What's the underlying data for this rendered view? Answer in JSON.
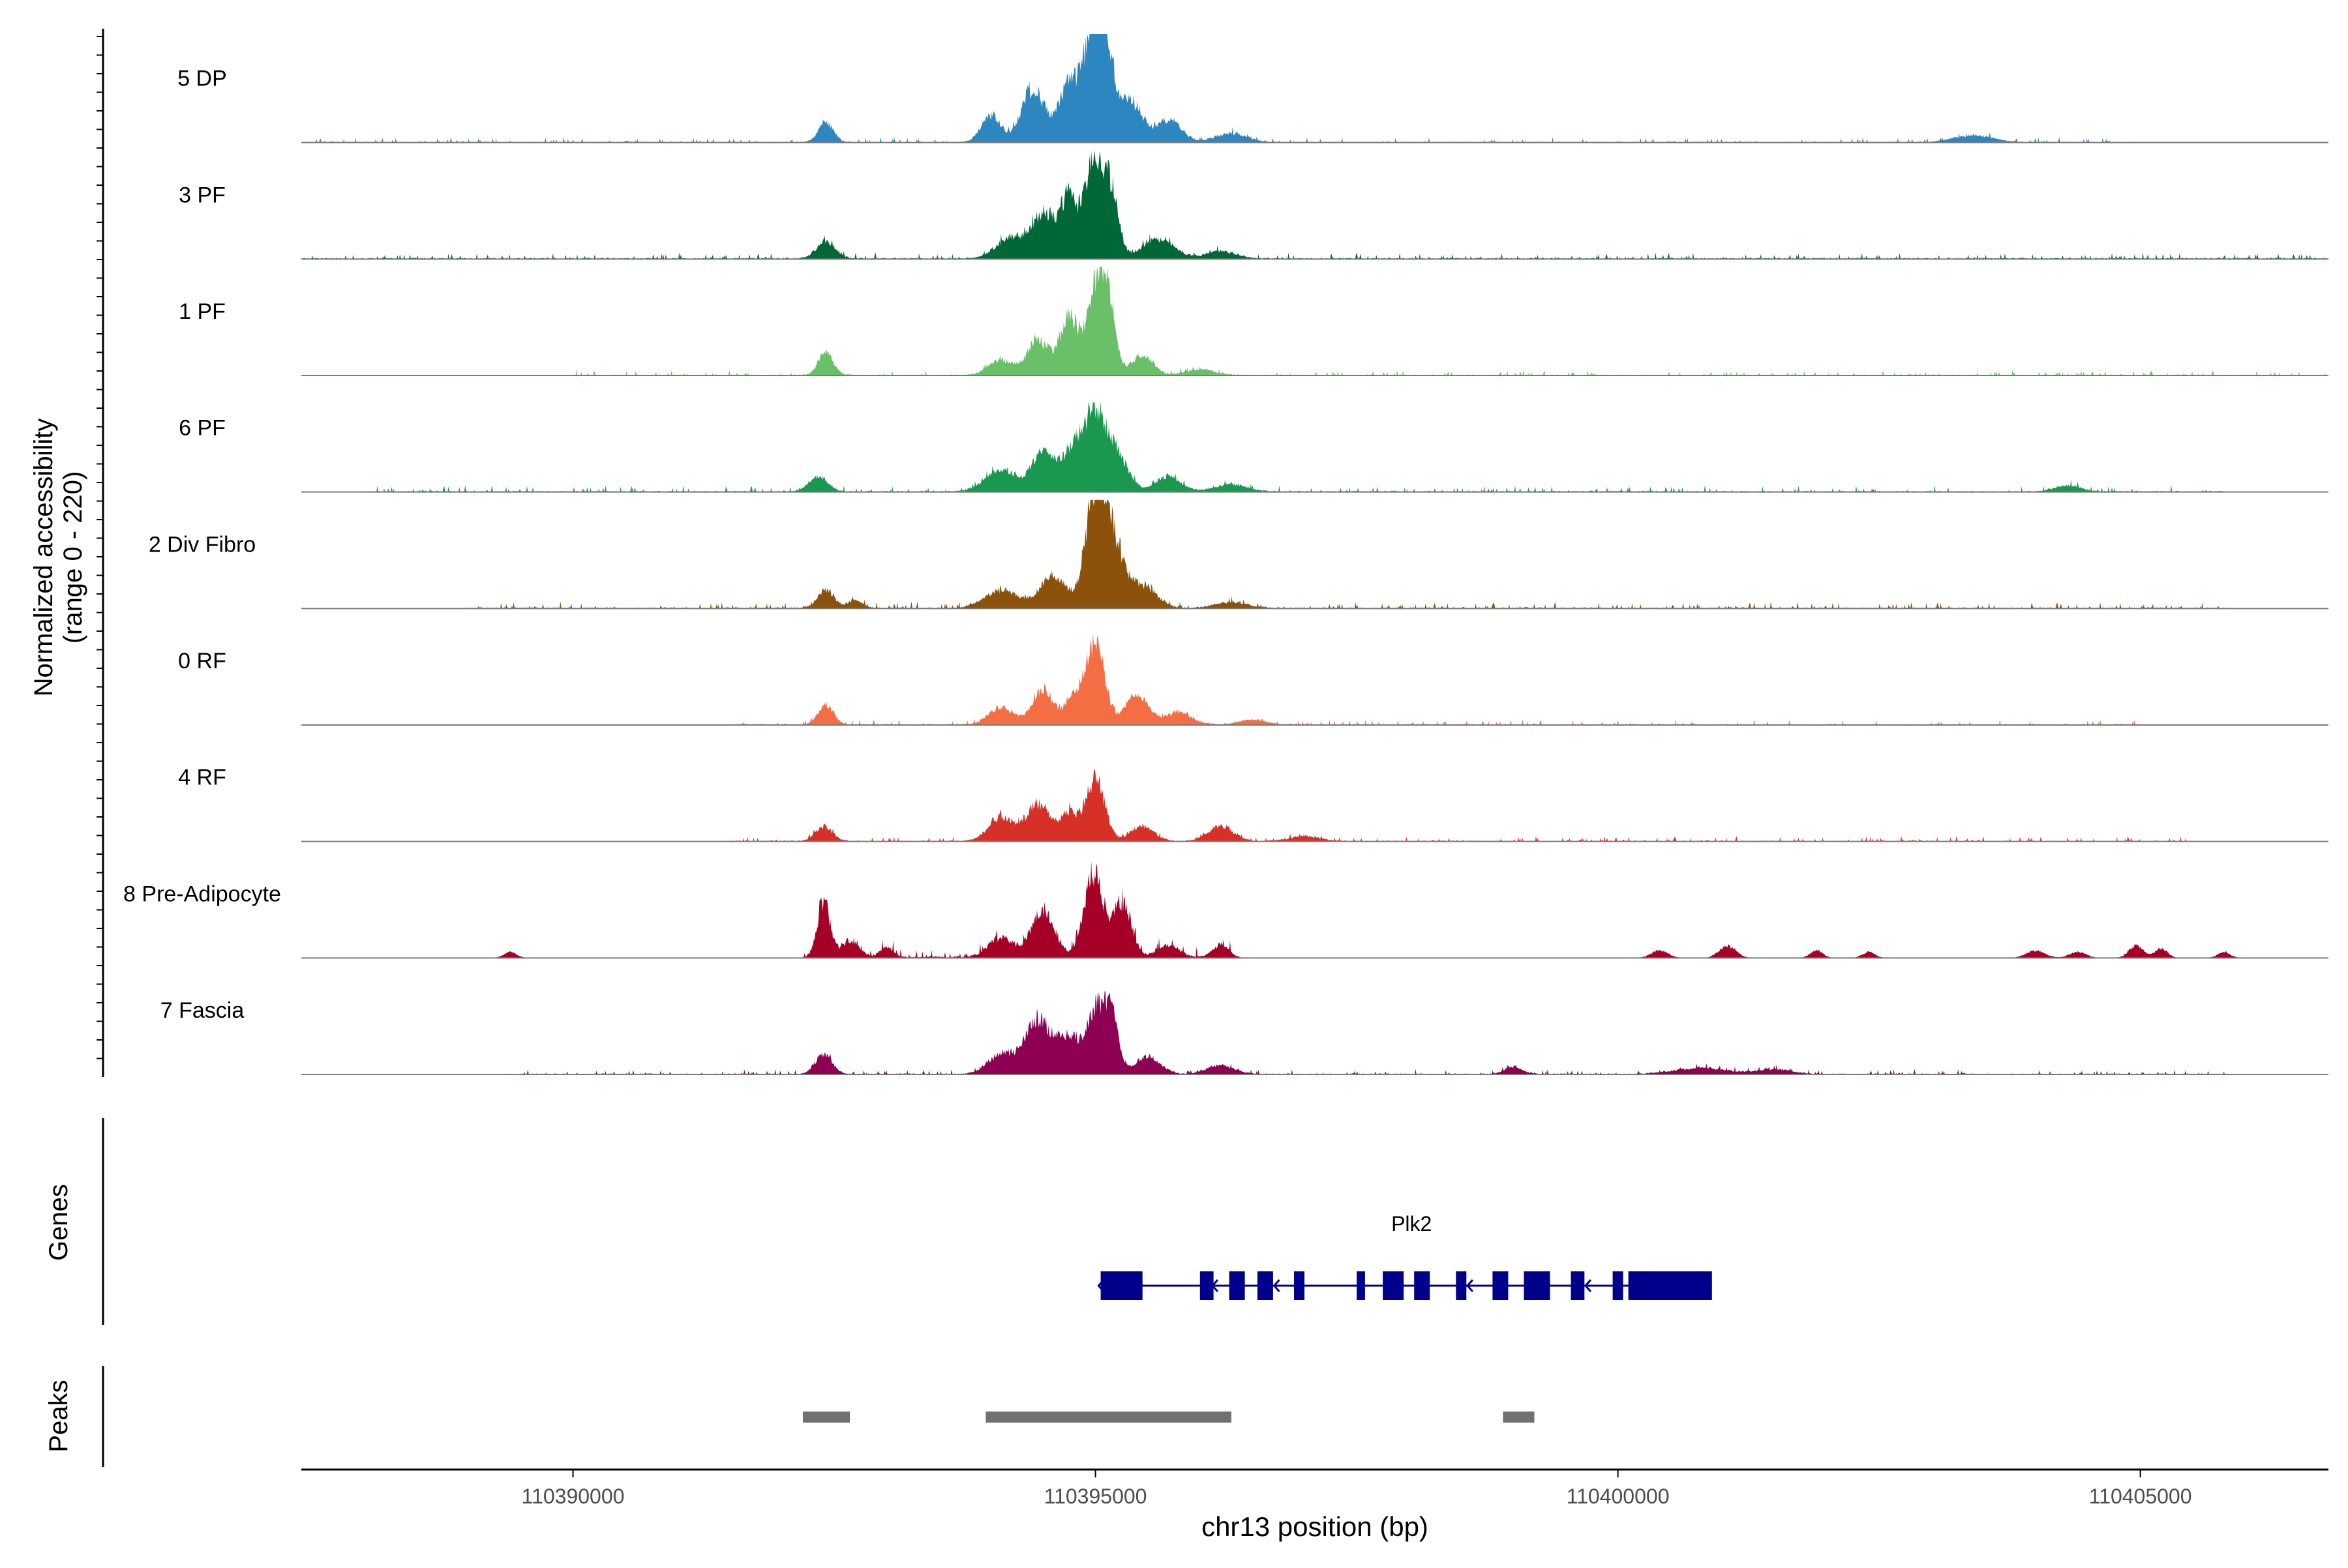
{
  "chart_data": {
    "type": "area",
    "title": "",
    "y_axis_title": "Normalized accessibility",
    "y_axis_range_label": "(range 0 - 220)",
    "ylim": [
      0,
      220
    ],
    "x_axis_title": "chr13 position (bp)",
    "xlim": [
      110387400,
      110406800
    ],
    "x_ticks": [
      110390000,
      110395000,
      110400000,
      110405000
    ],
    "x_tick_labels": [
      "110390000",
      "110395000",
      "110400000",
      "110405000"
    ],
    "tracks": [
      {
        "name": "5 DP",
        "color": "#2E86C1",
        "baseline": 5,
        "noise": 4,
        "noise_range": [
          110387400,
          110405000
        ],
        "peaks": [
          [
            110392420,
            40,
            70
          ],
          [
            110394000,
            55,
            90
          ],
          [
            110394400,
            110,
            110
          ],
          [
            110394750,
            115,
            100
          ],
          [
            110394980,
            205,
            90
          ],
          [
            110395100,
            160,
            90
          ],
          [
            110395350,
            80,
            100
          ],
          [
            110395700,
            45,
            120
          ],
          [
            110396300,
            18,
            150
          ],
          [
            110403400,
            14,
            180
          ]
        ]
      },
      {
        "name": "3 PF",
        "color": "#006837",
        "baseline": 5,
        "noise": 5,
        "noise_range": [
          110387400,
          110406800
        ],
        "peaks": [
          [
            110392420,
            35,
            90
          ],
          [
            110394200,
            45,
            140
          ],
          [
            110394500,
            85,
            100
          ],
          [
            110394750,
            125,
            90
          ],
          [
            110394990,
            200,
            80
          ],
          [
            110395150,
            130,
            70
          ],
          [
            110395600,
            40,
            150
          ],
          [
            110396200,
            15,
            140
          ]
        ]
      },
      {
        "name": "1 PF",
        "color": "#6ABF69",
        "baseline": 4,
        "noise": 4,
        "noise_range": [
          110390000,
          110406800
        ],
        "peaks": [
          [
            110392420,
            45,
            70
          ],
          [
            110394100,
            30,
            120
          ],
          [
            110394450,
            70,
            100
          ],
          [
            110394750,
            120,
            90
          ],
          [
            110395000,
            165,
            80
          ],
          [
            110395120,
            140,
            70
          ],
          [
            110395450,
            40,
            100
          ],
          [
            110396000,
            12,
            130
          ]
        ]
      },
      {
        "name": "6 PF",
        "color": "#1A9850",
        "baseline": 5,
        "noise": 5,
        "noise_range": [
          110388000,
          110405800
        ],
        "peaks": [
          [
            110392350,
            30,
            90
          ],
          [
            110394100,
            45,
            150
          ],
          [
            110394500,
            75,
            110
          ],
          [
            110394780,
            80,
            100
          ],
          [
            110394990,
            150,
            100
          ],
          [
            110395200,
            75,
            110
          ],
          [
            110395700,
            30,
            120
          ],
          [
            110396300,
            15,
            150
          ],
          [
            110404300,
            12,
            120
          ]
        ]
      },
      {
        "name": "2 Div Fibro",
        "color": "#8C510A",
        "baseline": 5,
        "noise": 5,
        "noise_range": [
          110389000,
          110405800
        ],
        "peaks": [
          [
            110392420,
            35,
            80
          ],
          [
            110392700,
            15,
            70
          ],
          [
            110394100,
            35,
            160
          ],
          [
            110394600,
            65,
            130
          ],
          [
            110394990,
            200,
            90
          ],
          [
            110395150,
            140,
            110
          ],
          [
            110395450,
            45,
            130
          ],
          [
            110396300,
            12,
            150
          ]
        ]
      },
      {
        "name": "0 RF",
        "color": "#F46D43",
        "baseline": 4,
        "noise": 4,
        "noise_range": [
          110391500,
          110405000
        ],
        "peaks": [
          [
            110392420,
            40,
            75
          ],
          [
            110394100,
            35,
            120
          ],
          [
            110394500,
            70,
            100
          ],
          [
            110394800,
            55,
            80
          ],
          [
            110395000,
            160,
            90
          ],
          [
            110395400,
            60,
            110
          ],
          [
            110395800,
            25,
            120
          ],
          [
            110396500,
            10,
            130
          ]
        ]
      },
      {
        "name": "4 RF",
        "color": "#D73027",
        "baseline": 4,
        "noise": 4,
        "noise_range": [
          110391500,
          110405500
        ],
        "peaks": [
          [
            110392400,
            30,
            80
          ],
          [
            110394100,
            50,
            120
          ],
          [
            110394450,
            75,
            110
          ],
          [
            110394750,
            55,
            90
          ],
          [
            110395000,
            125,
            90
          ],
          [
            110395450,
            30,
            110
          ],
          [
            110396200,
            30,
            120
          ],
          [
            110397000,
            10,
            140
          ]
        ]
      },
      {
        "name": "8 Pre-Adipocyte",
        "color": "#A50026",
        "baseline": 0,
        "noise": 8,
        "noise_range": [
          110392200,
          110396300
        ],
        "peaks": [
          [
            110389400,
            12,
            60
          ],
          [
            110392400,
            110,
            60
          ],
          [
            110392650,
            30,
            90
          ],
          [
            110393000,
            20,
            60
          ],
          [
            110394100,
            40,
            120
          ],
          [
            110394500,
            95,
            110
          ],
          [
            110394980,
            170,
            90
          ],
          [
            110395250,
            110,
            90
          ],
          [
            110395700,
            25,
            100
          ],
          [
            110396200,
            25,
            80
          ],
          [
            110400400,
            15,
            80
          ],
          [
            110401050,
            25,
            80
          ],
          [
            110401900,
            15,
            60
          ],
          [
            110402400,
            12,
            60
          ],
          [
            110404000,
            15,
            90
          ],
          [
            110404400,
            12,
            80
          ],
          [
            110404960,
            25,
            70
          ],
          [
            110405200,
            20,
            60
          ],
          [
            110405800,
            12,
            60
          ]
        ]
      },
      {
        "name": "7 Fascia",
        "color": "#8E0152",
        "baseline": 4,
        "noise": 4,
        "noise_range": [
          110389500,
          110405800
        ],
        "peaks": [
          [
            110392400,
            40,
            80
          ],
          [
            110394100,
            40,
            130
          ],
          [
            110394450,
            110,
            120
          ],
          [
            110394750,
            75,
            110
          ],
          [
            110395000,
            125,
            80
          ],
          [
            110395150,
            115,
            70
          ],
          [
            110395500,
            35,
            120
          ],
          [
            110396200,
            18,
            130
          ],
          [
            110399000,
            15,
            80
          ],
          [
            110400800,
            12,
            250
          ],
          [
            110401500,
            10,
            150
          ]
        ]
      }
    ],
    "genes_label": "Genes",
    "gene": {
      "name": "Plk2",
      "start": 110395050,
      "end": 110400900,
      "strand": "-",
      "exons": [
        [
          110395050,
          110395450
        ],
        [
          110396000,
          110396130
        ],
        [
          110396280,
          110396430
        ],
        [
          110396550,
          110396700
        ],
        [
          110396900,
          110397000
        ],
        [
          110397500,
          110397580
        ],
        [
          110397750,
          110397950
        ],
        [
          110398050,
          110398200
        ],
        [
          110398450,
          110398550
        ],
        [
          110398800,
          110398950
        ],
        [
          110399100,
          110399350
        ],
        [
          110399550,
          110399680
        ],
        [
          110399950,
          110400050
        ],
        [
          110400100,
          110400900
        ]
      ],
      "color": "#00008B"
    },
    "peaks_label": "Peaks",
    "peaks": [
      [
        110392200,
        110392650
      ],
      [
        110393950,
        110396300
      ],
      [
        110398900,
        110399200
      ]
    ],
    "peaks_color": "#707070"
  }
}
